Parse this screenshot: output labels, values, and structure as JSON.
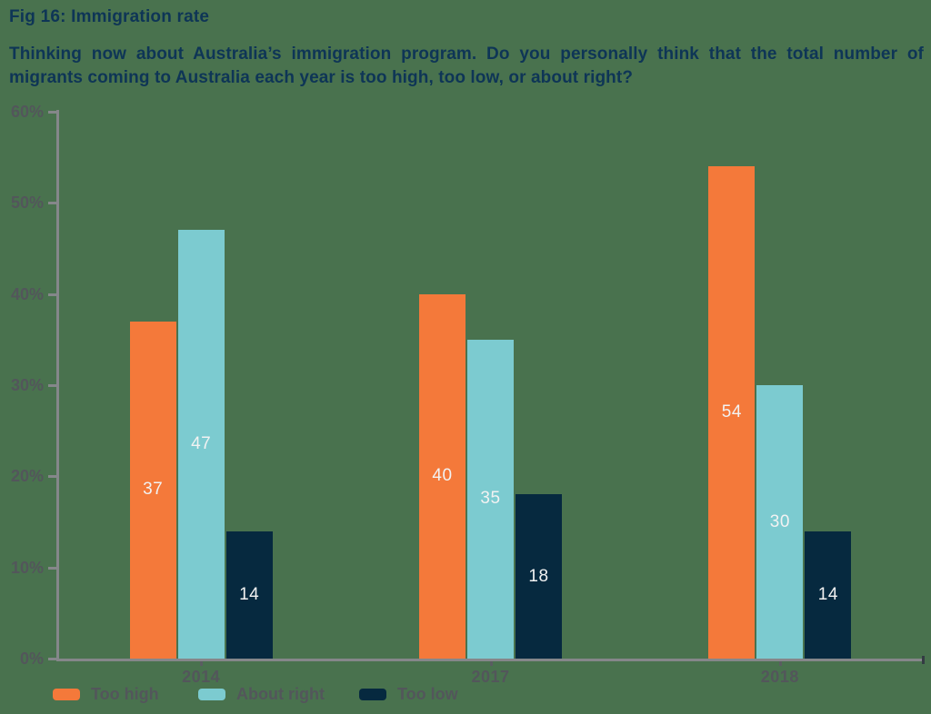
{
  "header": {
    "title": "Fig 16: Immigration rate",
    "subtitle": "Thinking now about Australia’s immigration program. Do you personally think that the total number of migrants coming to Australia each year is too high, too low, or about right?"
  },
  "colors": {
    "background": "#49724E",
    "heading_text": "#0E3556",
    "axis_line": "#85878A",
    "tick_mark": "#5A5D61",
    "axis_end_tick": "#343B43",
    "axis_label_text": "#53565B",
    "bar_value_text": "#F2F2F2",
    "series": {
      "too_high": "#F4793A",
      "about_right": "#7CCBD0",
      "too_low": "#06293F"
    }
  },
  "chart_data": {
    "type": "bar",
    "title": "Fig 16: Immigration rate",
    "categories": [
      "2014",
      "2017",
      "2018"
    ],
    "series": [
      {
        "name": "Too high",
        "key": "too_high",
        "values": [
          37,
          40,
          54
        ]
      },
      {
        "name": "About right",
        "key": "about_right",
        "values": [
          47,
          35,
          30
        ]
      },
      {
        "name": "Too low",
        "key": "too_low",
        "values": [
          14,
          18,
          14
        ]
      }
    ],
    "xlabel": "",
    "ylabel": "",
    "ylim": [
      0,
      60
    ],
    "ytick_step": 10,
    "ytick_labels": [
      "0%",
      "10%",
      "20%",
      "30%",
      "40%",
      "50%",
      "60%"
    ],
    "grid": false,
    "value_labels": true,
    "legend_position": "bottom"
  },
  "legend": {
    "items": [
      {
        "label": "Too high",
        "key": "too_high"
      },
      {
        "label": "About right",
        "key": "about_right"
      },
      {
        "label": "Too low",
        "key": "too_low"
      }
    ]
  }
}
